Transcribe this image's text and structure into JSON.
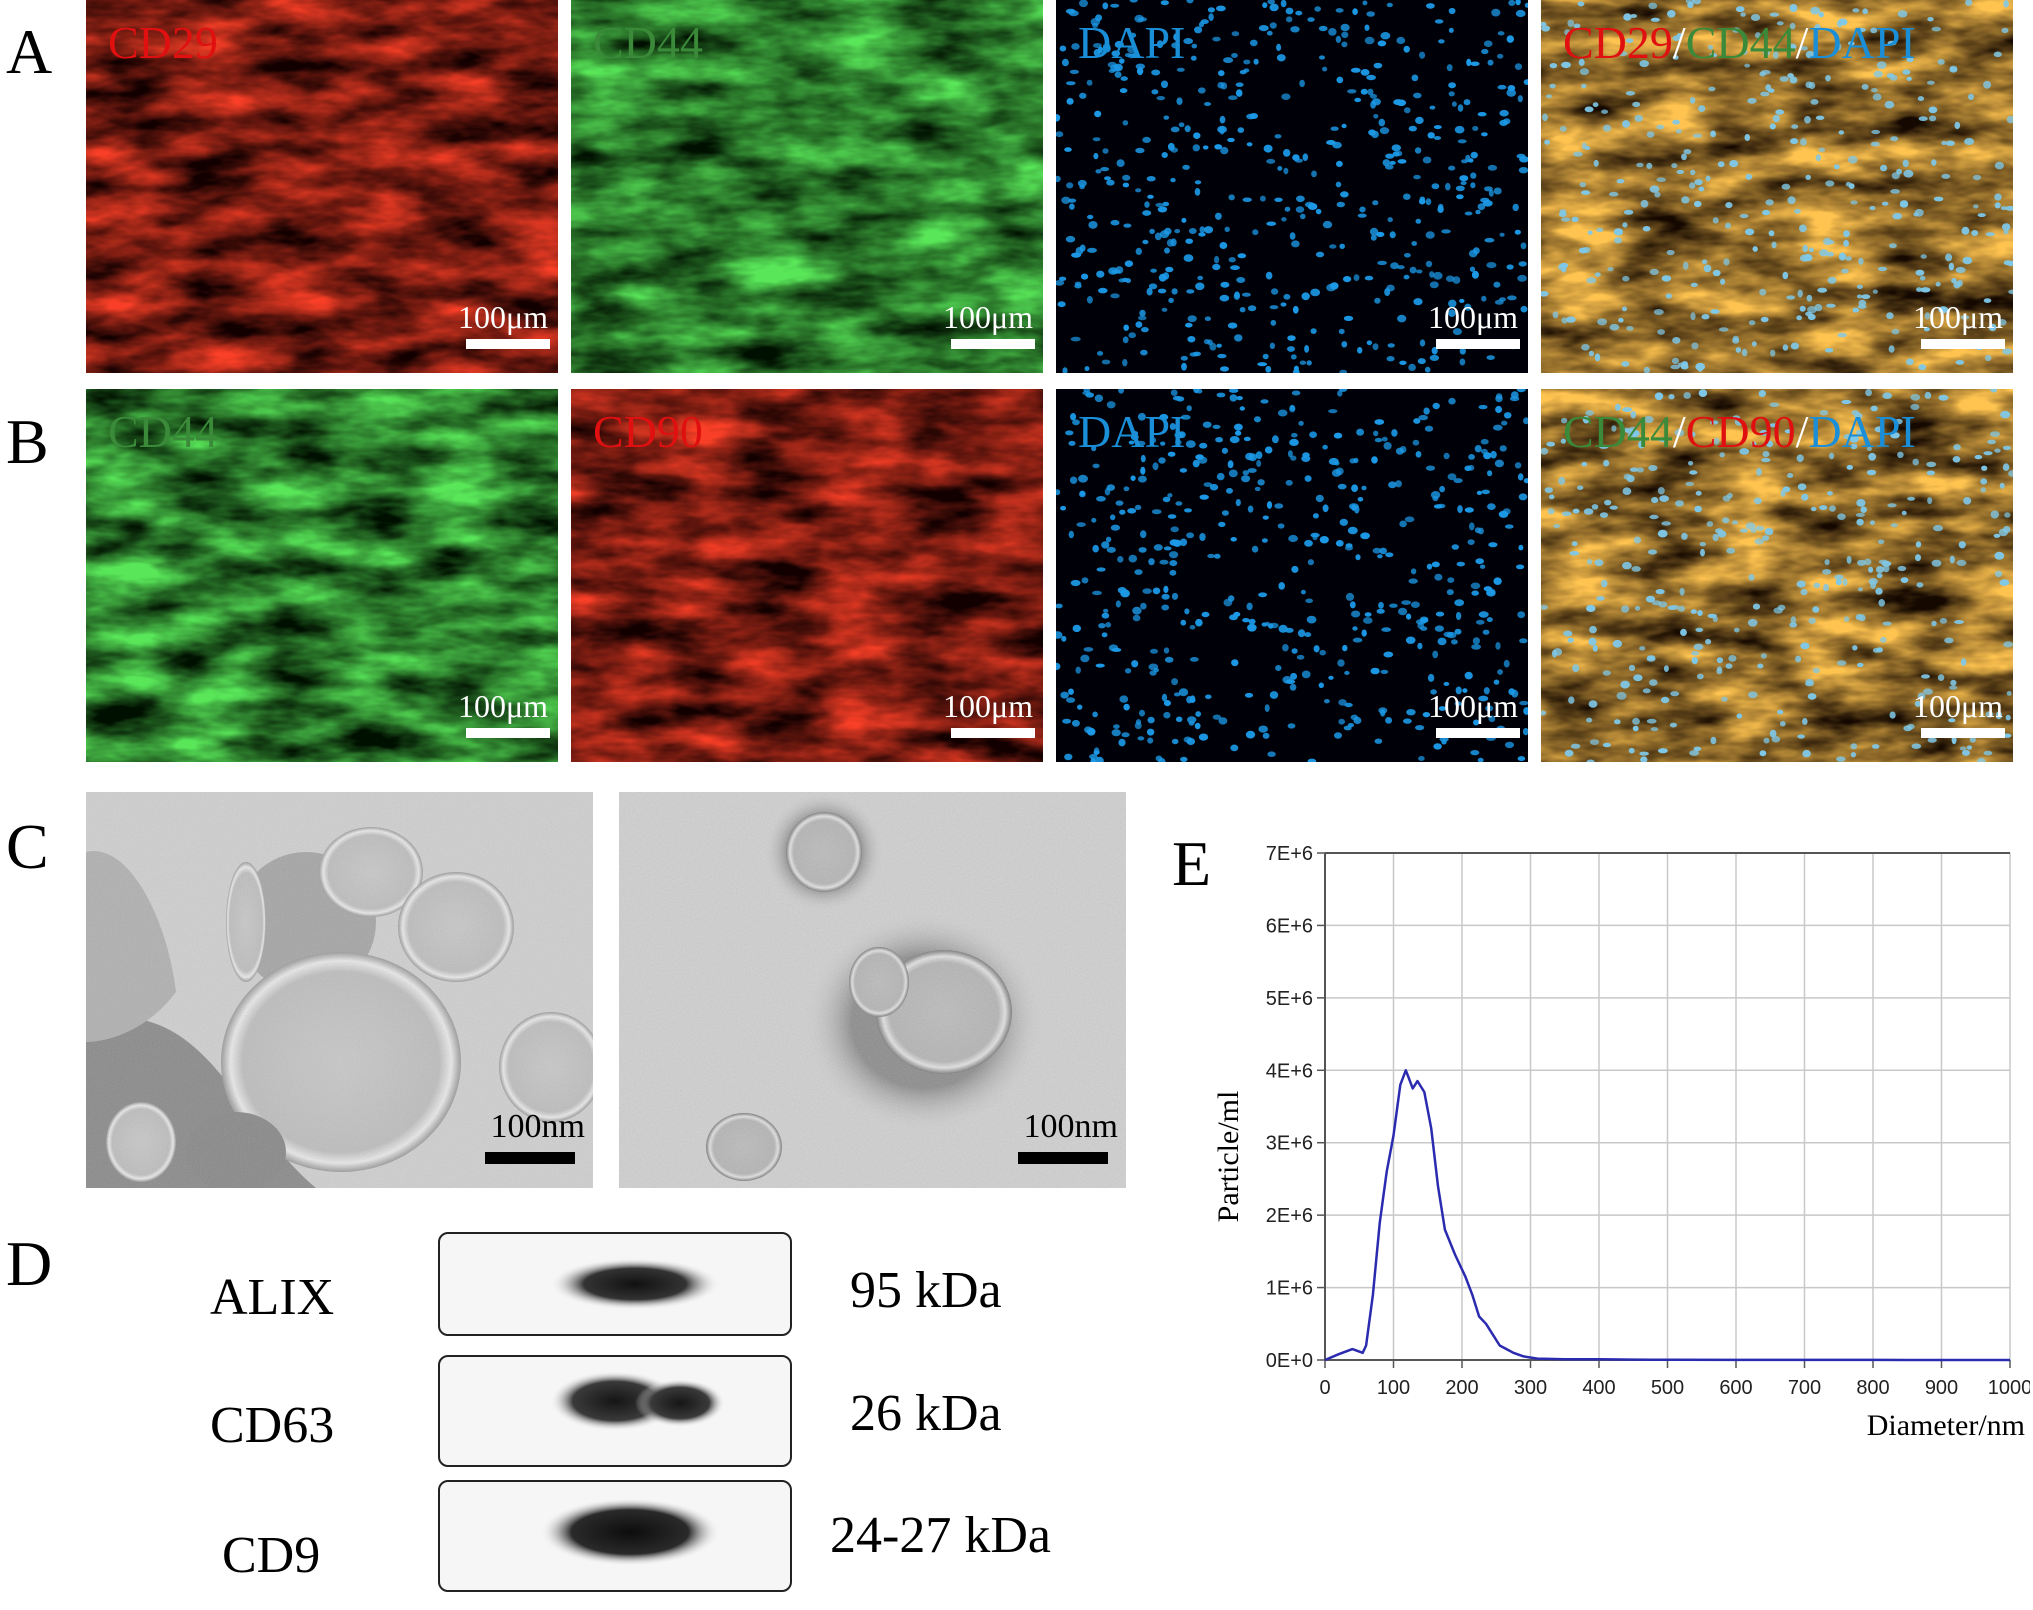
{
  "panel_labels": {
    "a": "A",
    "b": "B",
    "c": "C",
    "d": "D",
    "e": "E"
  },
  "scale_bar_if": "100μm",
  "scale_bar_tem": "100nm",
  "row_a": [
    {
      "parts": [
        {
          "text": "CD29",
          "color": "#e01010"
        }
      ],
      "tint": "red"
    },
    {
      "parts": [
        {
          "text": "CD44",
          "color": "#3a8a3a"
        }
      ],
      "tint": "green"
    },
    {
      "parts": [
        {
          "text": "DAPI",
          "color": "#1a8fd8"
        }
      ],
      "tint": "blue"
    },
    {
      "parts": [
        {
          "text": "CD29",
          "color": "#e01010"
        },
        {
          "text": "/",
          "color": "#ffffff"
        },
        {
          "text": "CD44",
          "color": "#3a8a3a"
        },
        {
          "text": "/",
          "color": "#ffffff"
        },
        {
          "text": "DAPI",
          "color": "#1a8fd8"
        }
      ],
      "tint": "merge"
    }
  ],
  "row_b": [
    {
      "parts": [
        {
          "text": "CD44",
          "color": "#3a8a3a"
        }
      ],
      "tint": "green"
    },
    {
      "parts": [
        {
          "text": "CD90",
          "color": "#e01010"
        }
      ],
      "tint": "red"
    },
    {
      "parts": [
        {
          "text": "DAPI",
          "color": "#1a8fd8"
        }
      ],
      "tint": "blue"
    },
    {
      "parts": [
        {
          "text": "CD44",
          "color": "#3a8a3a"
        },
        {
          "text": "/",
          "color": "#ffffff"
        },
        {
          "text": "CD90",
          "color": "#e01010"
        },
        {
          "text": "/",
          "color": "#ffffff"
        },
        {
          "text": "DAPI",
          "color": "#1a8fd8"
        }
      ],
      "tint": "merge"
    }
  ],
  "western_blot": [
    {
      "protein": "ALIX",
      "size": "95 kDa"
    },
    {
      "protein": "CD63",
      "size": "26 kDa"
    },
    {
      "protein": "CD9",
      "size": "24-27 kDa"
    }
  ],
  "chart_data": {
    "type": "line",
    "title": "",
    "xlabel": "Diameter/nm",
    "ylabel": "Particle/ml",
    "xlim": [
      0,
      1000
    ],
    "ylim": [
      0,
      7000000
    ],
    "xticks": [
      "0",
      "100",
      "200",
      "300",
      "400",
      "500",
      "600",
      "700",
      "800",
      "900",
      "1000"
    ],
    "yticks": [
      "0E+0",
      "1E+6",
      "2E+6",
      "3E+6",
      "4E+6",
      "5E+6",
      "6E+6",
      "7E+6"
    ],
    "grid": true,
    "line_color": "#2b2bb0",
    "x": [
      0,
      20,
      40,
      55,
      60,
      70,
      80,
      90,
      100,
      110,
      118,
      122,
      128,
      135,
      145,
      155,
      165,
      175,
      190,
      205,
      215,
      225,
      235,
      245,
      255,
      265,
      275,
      290,
      310,
      350,
      400,
      450,
      500,
      600,
      700,
      800,
      900,
      1000
    ],
    "y": [
      0,
      80000,
      150000,
      100000,
      200000,
      900000,
      1900000,
      2600000,
      3100000,
      3800000,
      4000000,
      3900000,
      3750000,
      3850000,
      3700000,
      3200000,
      2400000,
      1800000,
      1450000,
      1150000,
      900000,
      600000,
      500000,
      350000,
      200000,
      150000,
      100000,
      50000,
      20000,
      10000,
      10000,
      5000,
      3000,
      2000,
      1000,
      1000,
      500,
      0
    ]
  }
}
